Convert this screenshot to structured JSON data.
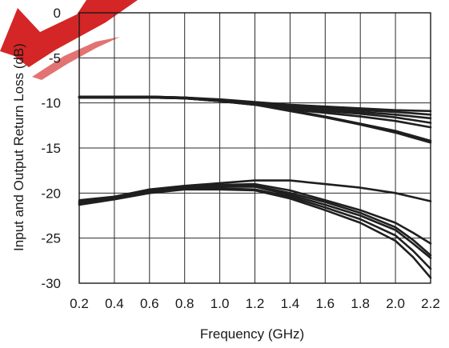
{
  "chart_data": {
    "type": "line",
    "xlabel": "Frequency (GHz)",
    "ylabel": "Input and Output Return Loss (dB)",
    "xlim": [
      0.2,
      2.2
    ],
    "ylim": [
      -30,
      0
    ],
    "xticks": [
      "0.2",
      "0.4",
      "0.6",
      "0.8",
      "1.0",
      "1.2",
      "1.4",
      "1.6",
      "1.8",
      "2.0",
      "2.2"
    ],
    "yticks": [
      "0",
      "-5",
      "-10",
      "-15",
      "-20",
      "-25",
      "-30"
    ],
    "grid": true,
    "legend": "none",
    "line_color": "#1f1f1f",
    "watermark_color": "#cc0000",
    "series": [
      {
        "x": [
          0.2,
          0.4,
          0.6,
          0.8,
          1.0,
          1.2,
          1.4,
          1.6,
          1.8,
          2.0,
          2.2
        ],
        "y": [
          -9.3,
          -9.3,
          -9.3,
          -9.4,
          -9.6,
          -9.9,
          -10.2,
          -10.4,
          -10.6,
          -10.8,
          -10.9
        ]
      },
      {
        "x": [
          0.2,
          0.4,
          0.6,
          0.8,
          1.0,
          1.2,
          1.4,
          1.6,
          1.8,
          2.0,
          2.2
        ],
        "y": [
          -9.4,
          -9.4,
          -9.3,
          -9.4,
          -9.7,
          -10.0,
          -10.4,
          -10.6,
          -10.8,
          -11.0,
          -11.3
        ]
      },
      {
        "x": [
          0.2,
          0.4,
          0.6,
          0.8,
          1.0,
          1.2,
          1.4,
          1.6,
          1.8,
          2.0,
          2.2
        ],
        "y": [
          -9.3,
          -9.4,
          -9.3,
          -9.4,
          -9.7,
          -10.0,
          -10.4,
          -10.7,
          -11.0,
          -11.3,
          -11.7
        ]
      },
      {
        "x": [
          0.2,
          0.4,
          0.6,
          0.8,
          1.0,
          1.2,
          1.4,
          1.6,
          1.8,
          2.0,
          2.2
        ],
        "y": [
          -9.4,
          -9.4,
          -9.4,
          -9.5,
          -9.7,
          -10.1,
          -10.5,
          -10.9,
          -11.2,
          -11.6,
          -12.2
        ]
      },
      {
        "x": [
          0.2,
          0.4,
          0.6,
          0.8,
          1.0,
          1.2,
          1.4,
          1.6,
          1.8,
          2.0,
          2.2
        ],
        "y": [
          -9.3,
          -9.4,
          -9.4,
          -9.5,
          -9.8,
          -10.2,
          -10.7,
          -11.1,
          -11.5,
          -12.0,
          -12.7
        ]
      },
      {
        "x": [
          0.2,
          0.4,
          0.6,
          0.8,
          1.0,
          1.2,
          1.4,
          1.6,
          1.8,
          2.0,
          2.2
        ],
        "y": [
          -9.4,
          -9.4,
          -9.4,
          -9.5,
          -9.8,
          -10.2,
          -10.8,
          -11.5,
          -12.3,
          -13.1,
          -14.2
        ]
      },
      {
        "x": [
          0.2,
          0.4,
          0.6,
          0.8,
          1.0,
          1.2,
          1.4,
          1.6,
          1.8,
          2.0,
          2.2
        ],
        "y": [
          -9.4,
          -9.4,
          -9.3,
          -9.5,
          -9.8,
          -10.2,
          -10.9,
          -11.6,
          -12.4,
          -13.3,
          -14.4
        ]
      },
      {
        "x": [
          0.2,
          0.4,
          0.6,
          0.8,
          1.0,
          1.2,
          1.3,
          1.4,
          1.6,
          1.8,
          2.0,
          2.2
        ],
        "y": [
          -20.8,
          -20.4,
          -19.6,
          -19.2,
          -18.9,
          -18.6,
          -18.6,
          -18.6,
          -19.0,
          -19.4,
          -20.0,
          -20.9
        ]
      },
      {
        "x": [
          0.2,
          0.4,
          0.6,
          0.8,
          1.0,
          1.2,
          1.4,
          1.6,
          1.8,
          2.0,
          2.1,
          2.2
        ],
        "y": [
          -21.0,
          -20.5,
          -19.7,
          -19.3,
          -19.1,
          -19.0,
          -19.7,
          -20.8,
          -21.9,
          -23.3,
          -24.4,
          -25.6
        ]
      },
      {
        "x": [
          0.2,
          0.4,
          0.6,
          0.8,
          1.0,
          1.2,
          1.4,
          1.6,
          1.8,
          2.0,
          2.1,
          2.2
        ],
        "y": [
          -21.0,
          -20.5,
          -19.8,
          -19.3,
          -19.2,
          -19.2,
          -20.0,
          -21.0,
          -22.2,
          -23.8,
          -25.2,
          -26.9
        ]
      },
      {
        "x": [
          0.2,
          0.4,
          0.6,
          0.8,
          1.0,
          1.2,
          1.4,
          1.6,
          1.8,
          2.0,
          2.1,
          2.2
        ],
        "y": [
          -21.1,
          -20.6,
          -19.8,
          -19.4,
          -19.3,
          -19.3,
          -20.2,
          -21.3,
          -22.5,
          -24.1,
          -25.6,
          -27.2
        ]
      },
      {
        "x": [
          0.2,
          0.4,
          0.6,
          0.8,
          1.0,
          1.2,
          1.4,
          1.6,
          1.8,
          2.0,
          2.1,
          2.2
        ],
        "y": [
          -21.2,
          -20.6,
          -19.9,
          -19.5,
          -19.5,
          -19.6,
          -20.4,
          -21.6,
          -22.9,
          -24.7,
          -26.4,
          -28.4
        ]
      },
      {
        "x": [
          0.2,
          0.4,
          0.6,
          0.8,
          1.0,
          1.2,
          1.4,
          1.6,
          1.8,
          2.0,
          2.1,
          2.2
        ],
        "y": [
          -21.3,
          -20.7,
          -20.0,
          -19.6,
          -19.6,
          -19.7,
          -20.6,
          -21.9,
          -23.3,
          -25.3,
          -27.1,
          -29.4
        ]
      }
    ]
  }
}
